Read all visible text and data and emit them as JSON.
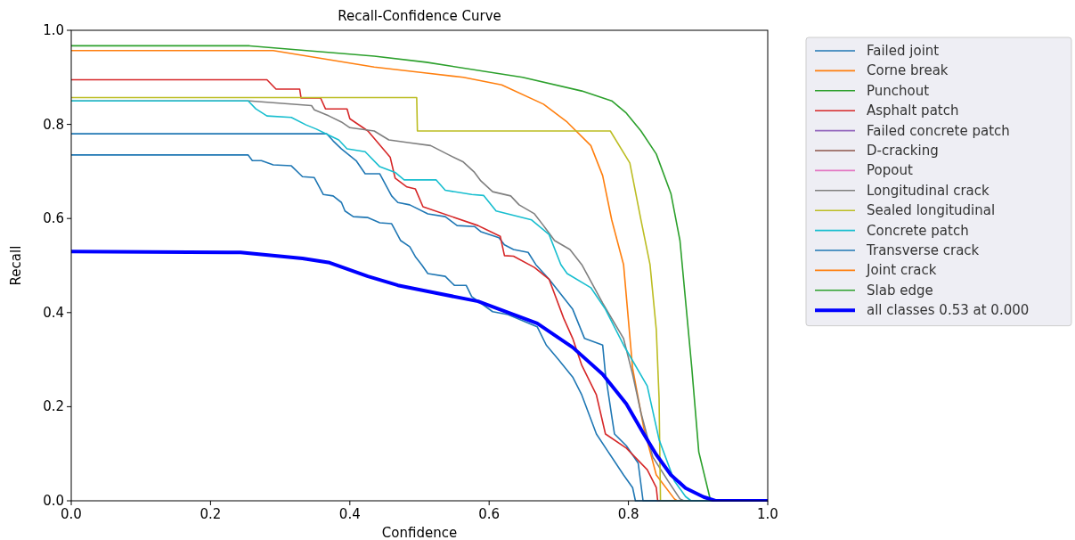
{
  "chart_data": {
    "type": "line",
    "title": "Recall-Confidence Curve",
    "xlabel": "Confidence",
    "ylabel": "Recall",
    "xlim": [
      0,
      1
    ],
    "ylim": [
      0,
      1
    ],
    "xticks": [
      {
        "value": 0,
        "label": "0.0"
      },
      {
        "value": 0.2,
        "label": "0.2"
      },
      {
        "value": 0.4,
        "label": "0.4"
      },
      {
        "value": 0.6,
        "label": "0.6"
      },
      {
        "value": 0.8,
        "label": "0.8"
      },
      {
        "value": 1,
        "label": "1.0"
      }
    ],
    "yticks": [
      {
        "value": 0,
        "label": "0.0"
      },
      {
        "value": 0.2,
        "label": "0.2"
      },
      {
        "value": 0.4,
        "label": "0.4"
      },
      {
        "value": 0.6,
        "label": "0.6"
      },
      {
        "value": 0.8,
        "label": "0.8"
      },
      {
        "value": 1,
        "label": "1.0"
      }
    ],
    "legend": "right",
    "line_style": "solid",
    "marker": "none",
    "series": [
      {
        "name": "Failed joint",
        "color": "#1f77b4",
        "x": [
          0,
          0.367,
          0.376,
          0.388,
          0.409,
          0.422,
          0.443,
          0.46,
          0.469,
          0.486,
          0.512,
          0.537,
          0.554,
          0.579,
          0.588,
          0.614,
          0.622,
          0.635,
          0.656,
          0.667,
          0.686,
          0.72,
          0.737,
          0.763,
          0.767,
          0.776,
          0.78,
          0.797,
          0.814,
          0.821,
          1
        ],
        "values": [
          0.78,
          0.78,
          0.765,
          0.748,
          0.723,
          0.695,
          0.695,
          0.648,
          0.634,
          0.629,
          0.61,
          0.604,
          0.585,
          0.583,
          0.572,
          0.559,
          0.544,
          0.534,
          0.528,
          0.502,
          0.471,
          0.407,
          0.345,
          0.331,
          0.269,
          0.18,
          0.142,
          0.117,
          0.08,
          0,
          0
        ]
      },
      {
        "name": "Corne break",
        "color": "#ff7f0e",
        "x": [
          0,
          0.29,
          0.435,
          0.51,
          0.563,
          0.618,
          0.678,
          0.712,
          0.746,
          0.763,
          0.776,
          0.793,
          0.806,
          0.822,
          0.84,
          0.866,
          0.87,
          1
        ],
        "values": [
          0.957,
          0.957,
          0.922,
          0.909,
          0.9,
          0.884,
          0.843,
          0.805,
          0.755,
          0.691,
          0.597,
          0.502,
          0.282,
          0.155,
          0.055,
          0.004,
          0,
          0
        ]
      },
      {
        "name": "Punchout",
        "color": "#2ca02c",
        "x": [
          0,
          0.256,
          0.435,
          0.51,
          0.648,
          0.733,
          0.776,
          0.797,
          0.818,
          0.84,
          0.861,
          0.874,
          0.891,
          0.901,
          0.918,
          1
        ],
        "values": [
          0.967,
          0.967,
          0.945,
          0.932,
          0.9,
          0.871,
          0.85,
          0.824,
          0.786,
          0.737,
          0.653,
          0.553,
          0.282,
          0.104,
          0,
          0
        ]
      },
      {
        "name": "Asphalt patch",
        "color": "#d62728",
        "x": [
          0,
          0.281,
          0.294,
          0.328,
          0.33,
          0.358,
          0.365,
          0.396,
          0.4,
          0.426,
          0.458,
          0.465,
          0.482,
          0.494,
          0.505,
          0.584,
          0.616,
          0.622,
          0.635,
          0.665,
          0.686,
          0.707,
          0.72,
          0.733,
          0.754,
          0.767,
          0.797,
          0.827,
          0.84,
          0.842,
          1
        ],
        "values": [
          0.895,
          0.895,
          0.875,
          0.875,
          0.856,
          0.856,
          0.833,
          0.833,
          0.812,
          0.786,
          0.73,
          0.686,
          0.667,
          0.663,
          0.625,
          0.585,
          0.562,
          0.521,
          0.52,
          0.496,
          0.471,
          0.388,
          0.345,
          0.288,
          0.225,
          0.142,
          0.112,
          0.066,
          0.028,
          0,
          0
        ]
      },
      {
        "name": "Failed concrete patch",
        "color": "#9467bd"
      },
      {
        "name": "D-cracking",
        "color": "#8c564b"
      },
      {
        "name": "Popout",
        "color": "#e377c2"
      },
      {
        "name": "Longitudinal crack",
        "color": "#7f7f7f",
        "x": [
          0,
          0.256,
          0.345,
          0.349,
          0.37,
          0.388,
          0.4,
          0.435,
          0.456,
          0.486,
          0.516,
          0.541,
          0.563,
          0.579,
          0.588,
          0.605,
          0.631,
          0.643,
          0.665,
          0.678,
          0.694,
          0.716,
          0.733,
          0.763,
          0.793,
          0.806,
          0.818,
          0.835,
          0.857,
          0.874,
          0.88,
          1
        ],
        "values": [
          0.85,
          0.85,
          0.84,
          0.831,
          0.818,
          0.805,
          0.793,
          0.786,
          0.767,
          0.761,
          0.755,
          0.736,
          0.72,
          0.698,
          0.68,
          0.657,
          0.648,
          0.629,
          0.61,
          0.585,
          0.553,
          0.534,
          0.502,
          0.42,
          0.345,
          0.269,
          0.187,
          0.093,
          0.042,
          0.004,
          0,
          0
        ]
      },
      {
        "name": "Sealed longitudinal",
        "color": "#bcbd22",
        "x": [
          0,
          0.496,
          0.497,
          0.774,
          0.802,
          0.818,
          0.831,
          0.84,
          0.844,
          0.846,
          1
        ],
        "values": [
          0.857,
          0.857,
          0.786,
          0.786,
          0.718,
          0.597,
          0.502,
          0.364,
          0.218,
          0,
          0
        ]
      },
      {
        "name": "Concrete patch",
        "color": "#17becf",
        "x": [
          0,
          0.254,
          0.265,
          0.281,
          0.316,
          0.337,
          0.352,
          0.37,
          0.384,
          0.396,
          0.422,
          0.443,
          0.465,
          0.478,
          0.524,
          0.537,
          0.575,
          0.592,
          0.61,
          0.661,
          0.686,
          0.703,
          0.712,
          0.746,
          0.767,
          0.793,
          0.827,
          0.844,
          0.866,
          0.882,
          0.89,
          1
        ],
        "values": [
          0.85,
          0.85,
          0.833,
          0.818,
          0.815,
          0.799,
          0.79,
          0.777,
          0.767,
          0.748,
          0.742,
          0.71,
          0.698,
          0.682,
          0.682,
          0.66,
          0.651,
          0.649,
          0.616,
          0.597,
          0.566,
          0.502,
          0.483,
          0.453,
          0.407,
          0.331,
          0.244,
          0.13,
          0.042,
          0.009,
          0,
          0
        ]
      },
      {
        "name": "Transverse crack",
        "color": "#1f77b4",
        "x": [
          0,
          0.254,
          0.26,
          0.273,
          0.29,
          0.316,
          0.332,
          0.349,
          0.362,
          0.376,
          0.388,
          0.393,
          0.405,
          0.426,
          0.443,
          0.46,
          0.473,
          0.486,
          0.494,
          0.503,
          0.512,
          0.537,
          0.55,
          0.567,
          0.575,
          0.605,
          0.627,
          0.669,
          0.682,
          0.699,
          0.72,
          0.733,
          0.754,
          0.771,
          0.793,
          0.806,
          0.81,
          1
        ],
        "values": [
          0.735,
          0.735,
          0.723,
          0.723,
          0.714,
          0.712,
          0.689,
          0.687,
          0.651,
          0.648,
          0.634,
          0.616,
          0.604,
          0.602,
          0.591,
          0.589,
          0.553,
          0.54,
          0.519,
          0.502,
          0.483,
          0.477,
          0.458,
          0.458,
          0.434,
          0.402,
          0.396,
          0.37,
          0.331,
          0.301,
          0.263,
          0.225,
          0.142,
          0.104,
          0.055,
          0.028,
          0,
          0
        ]
      },
      {
        "name": "Joint crack",
        "color": "#ff7f0e"
      },
      {
        "name": "Slab edge",
        "color": "#2ca02c"
      },
      {
        "name": "all classes 0.53 at 0.000",
        "color": "#0000ff",
        "x": [
          0,
          0.243,
          0.332,
          0.371,
          0.426,
          0.469,
          0.512,
          0.584,
          0.669,
          0.72,
          0.763,
          0.797,
          0.822,
          0.84,
          0.861,
          0.882,
          0.908,
          0.925,
          1
        ],
        "values": [
          0.53,
          0.528,
          0.515,
          0.506,
          0.477,
          0.458,
          0.445,
          0.424,
          0.377,
          0.326,
          0.269,
          0.206,
          0.142,
          0.098,
          0.055,
          0.027,
          0.008,
          0,
          0
        ]
      }
    ]
  }
}
